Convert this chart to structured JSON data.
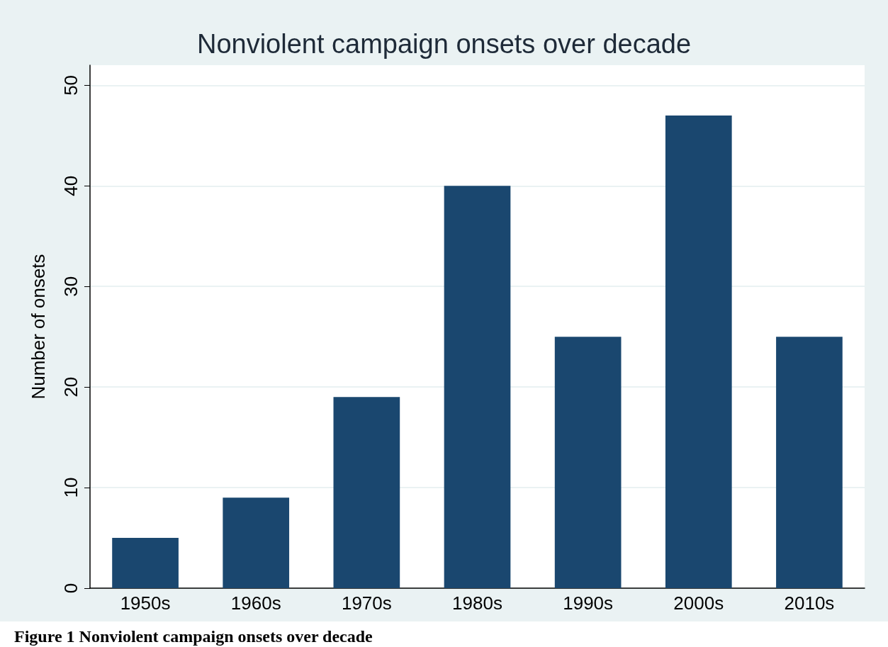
{
  "chart_data": {
    "type": "bar",
    "title": "Nonviolent campaign onsets over decade",
    "ylabel": "Number of onsets",
    "categories": [
      "1950s",
      "1960s",
      "1970s",
      "1980s",
      "1990s",
      "2000s",
      "2010s"
    ],
    "values": [
      5,
      9,
      19,
      40,
      25,
      47,
      25
    ],
    "color": "#1a476f",
    "ylim": [
      0,
      52
    ],
    "yticks": [
      0,
      10,
      20,
      30,
      40,
      50
    ],
    "grid": "y",
    "annotations": [
      "Figure 1 Nonviolent campaign onsets over decade"
    ]
  }
}
